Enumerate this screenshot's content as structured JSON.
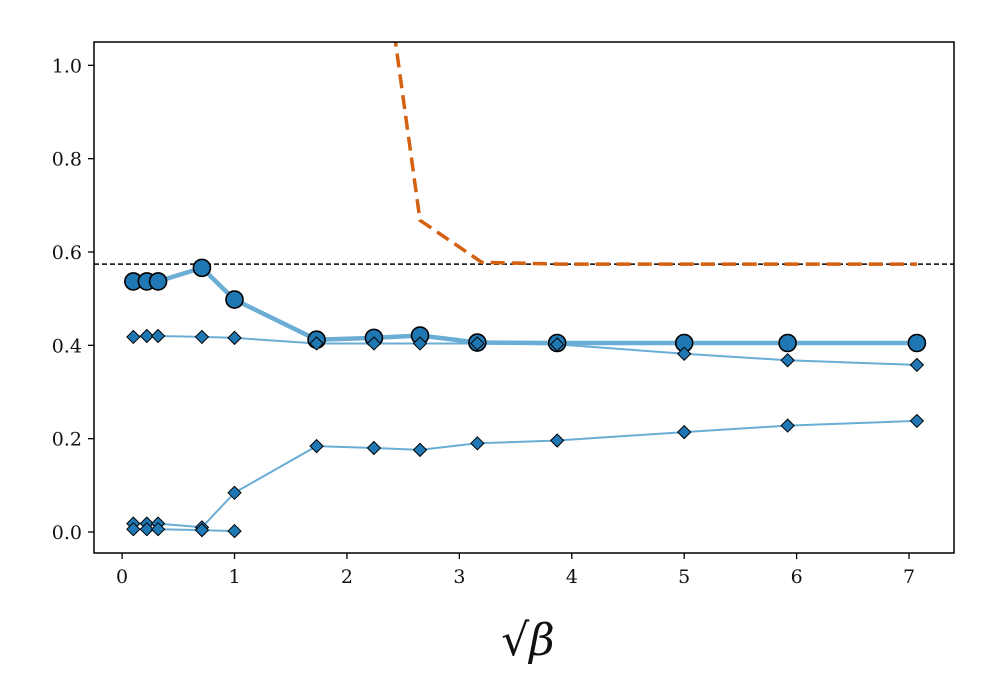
{
  "chart_data": {
    "type": "line",
    "title": "",
    "xlabel": "√β",
    "ylabel": "",
    "xlim": [
      -0.25,
      7.4
    ],
    "ylim": [
      -0.045,
      1.05
    ],
    "xticks": [
      0,
      1,
      2,
      3,
      4,
      5,
      6,
      7
    ],
    "yticks": [
      0.0,
      0.2,
      0.4,
      0.6,
      0.8,
      1.0
    ],
    "xtick_labels": [
      "0",
      "1",
      "2",
      "3",
      "4",
      "5",
      "6",
      "7"
    ],
    "ytick_labels": [
      "0.0",
      "0.2",
      "0.4",
      "0.6",
      "0.8",
      "1.0"
    ],
    "grid": false,
    "legend": "none",
    "reference_line": {
      "y": 0.574,
      "style": "dashed",
      "color": "#000000"
    },
    "series": [
      {
        "style": "dashed",
        "color": "#d5600f",
        "marker": "none",
        "x": [
          2.42,
          2.65,
          3.2,
          3.9,
          5.0,
          5.9,
          7.07
        ],
        "y": [
          1.07,
          0.668,
          0.578,
          0.574,
          0.574,
          0.574,
          0.574
        ]
      },
      {
        "style": "solid-thick",
        "color": "#6aaed6",
        "marker": "circle",
        "x": [
          0.1,
          0.22,
          0.32,
          0.71,
          1.0,
          1.73,
          2.24,
          2.65,
          3.16,
          3.87,
          5.0,
          5.92,
          7.07
        ],
        "y": [
          0.537,
          0.537,
          0.537,
          0.566,
          0.498,
          0.412,
          0.416,
          0.421,
          0.406,
          0.405,
          0.405,
          0.405,
          0.405
        ]
      },
      {
        "style": "solid-thin",
        "color": "#6aaed6",
        "marker": "diamond",
        "x": [
          0.1,
          0.22,
          0.32,
          0.71,
          1.0,
          1.73,
          2.24,
          2.65,
          3.16,
          3.87,
          5.0,
          5.92,
          7.07
        ],
        "y": [
          0.418,
          0.42,
          0.42,
          0.418,
          0.416,
          0.404,
          0.404,
          0.404,
          0.404,
          0.402,
          0.382,
          0.368,
          0.358
        ]
      },
      {
        "style": "solid-thin",
        "color": "#6aaed6",
        "marker": "diamond",
        "x": [
          0.1,
          0.22,
          0.32,
          0.71,
          1.0,
          1.73,
          2.24,
          2.65,
          3.16,
          3.87,
          5.0,
          5.92,
          7.07
        ],
        "y": [
          0.018,
          0.018,
          0.018,
          0.01,
          0.084,
          0.184,
          0.18,
          0.176,
          0.19,
          0.196,
          0.214,
          0.228,
          0.238
        ]
      },
      {
        "style": "solid-thin",
        "color": "#6aaed6",
        "marker": "diamond",
        "x": [
          0.1,
          0.22,
          0.32,
          0.71,
          1.0
        ],
        "y": [
          0.006,
          0.006,
          0.006,
          0.004,
          0.002
        ]
      }
    ]
  }
}
